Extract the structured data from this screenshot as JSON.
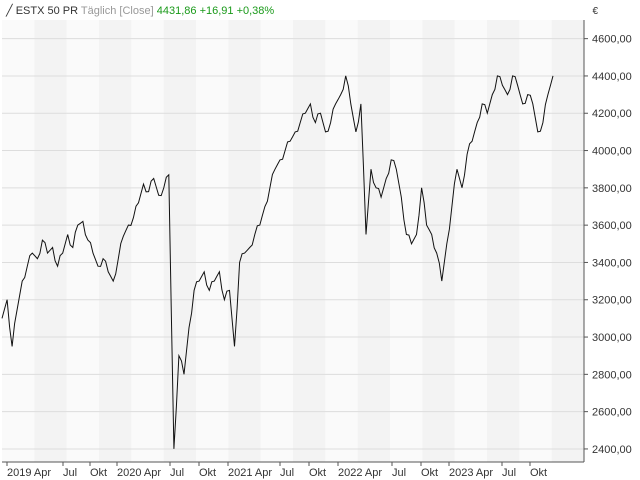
{
  "header": {
    "instrument": "ESTX 50 PR",
    "mode": "Täglich [Close]",
    "last": "4431,86",
    "change": "+16,91",
    "change_pct": "+0,38%"
  },
  "chart_data": {
    "type": "line",
    "unit": "€",
    "y_ticks": [
      "2400,00",
      "2600,00",
      "2800,00",
      "3000,00",
      "3200,00",
      "3400,00",
      "3600,00",
      "3800,00",
      "4000,00",
      "4200,00",
      "4400,00",
      "4600,00"
    ],
    "ylim": [
      2330,
      4700
    ],
    "x_ticks": [
      "2019 Apr",
      "Jul",
      "Okt",
      "2020 Apr",
      "Jul",
      "Okt",
      "2021 Apr",
      "Jul",
      "Okt",
      "2022 Apr",
      "Jul",
      "Okt",
      "2023 Apr",
      "Jul",
      "Okt"
    ],
    "series": [
      {
        "values": [
          3100,
          3200,
          2950,
          3150,
          3300,
          3380,
          3450,
          3420,
          3520,
          3450,
          3480,
          3380,
          3450,
          3550,
          3480,
          3600,
          3620,
          3520,
          3450,
          3380,
          3420,
          3350,
          3300,
          3420,
          3540,
          3600,
          3640,
          3720,
          3820,
          3780,
          3850,
          3760,
          3800,
          3870,
          2400,
          2900,
          2800,
          3050,
          3250,
          3300,
          3350,
          3250,
          3300,
          3350,
          3200,
          3250,
          2950,
          3400,
          3450,
          3480,
          3550,
          3600,
          3700,
          3800,
          3900,
          3950,
          4000,
          4050,
          4100,
          4150,
          4200,
          4250,
          4150,
          4200,
          4100,
          4150,
          4250,
          4300,
          4400,
          4250,
          4100,
          4250,
          3550,
          3900,
          3800,
          3750,
          3850,
          3950,
          3900,
          3750,
          3550,
          3500,
          3550,
          3800,
          3600,
          3550,
          3450,
          3300,
          3500,
          3700,
          3900,
          3800,
          3980,
          4050,
          4150,
          4250,
          4200,
          4300,
          4400,
          4350,
          4300,
          4400,
          4350,
          4250,
          4300,
          4250,
          4100,
          4150,
          4300,
          4400
        ]
      }
    ]
  }
}
